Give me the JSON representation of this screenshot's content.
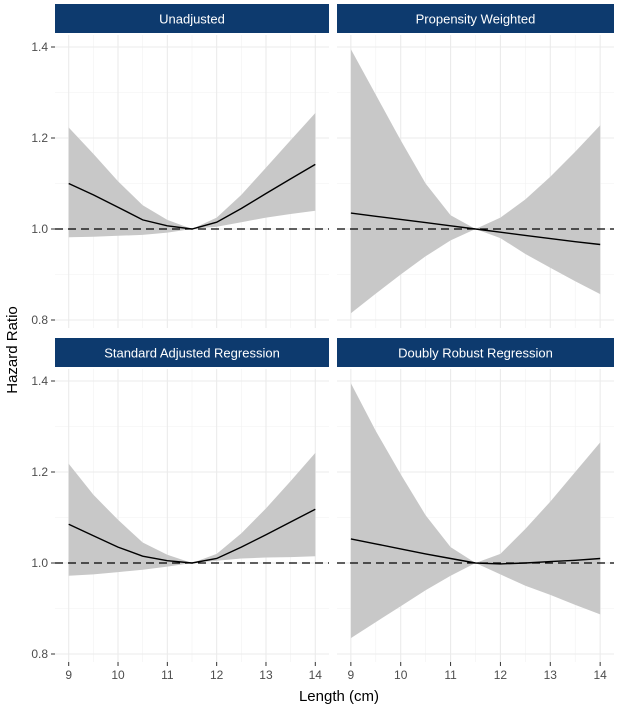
{
  "chart_data": {
    "type": "line",
    "ylabel": "Hazard Ratio",
    "xlabel": "Length (cm)",
    "xlim": [
      9,
      14
    ],
    "ylim": [
      0.8,
      1.4
    ],
    "x_ticks": [
      9,
      10,
      11,
      12,
      13,
      14
    ],
    "y_ticks": [
      0.8,
      1.0,
      1.2,
      1.4
    ],
    "y_tick_labels": [
      "0.8",
      "1.0",
      "1.2",
      "1.4"
    ],
    "reference_line": 1.0,
    "grid": true,
    "strip_color": "#0d3a6e",
    "ribbon_color": "#c8c8c8",
    "line_color": "#000000",
    "panels": [
      {
        "title": "Unadjusted",
        "x": [
          9,
          9.5,
          10,
          10.5,
          11,
          11.5,
          12,
          12.5,
          13,
          13.5,
          14
        ],
        "estimate": [
          1.1,
          1.075,
          1.048,
          1.02,
          1.007,
          1.0,
          1.015,
          1.045,
          1.078,
          1.11,
          1.142
        ],
        "lower": [
          0.982,
          0.983,
          0.985,
          0.987,
          0.992,
          1.0,
          1.005,
          1.015,
          1.025,
          1.033,
          1.04
        ],
        "upper": [
          1.223,
          1.165,
          1.105,
          1.052,
          1.02,
          1.0,
          1.025,
          1.075,
          1.135,
          1.195,
          1.255
        ]
      },
      {
        "title": "Propensity Weighted",
        "x": [
          9,
          9.5,
          10,
          10.5,
          11,
          11.5,
          12,
          12.5,
          13,
          13.5,
          14
        ],
        "estimate": [
          1.035,
          1.028,
          1.021,
          1.014,
          1.007,
          1.0,
          0.993,
          0.986,
          0.979,
          0.972,
          0.966
        ],
        "lower": [
          0.815,
          0.858,
          0.9,
          0.94,
          0.975,
          1.0,
          0.98,
          0.945,
          0.915,
          0.885,
          0.857
        ],
        "upper": [
          1.395,
          1.295,
          1.195,
          1.1,
          1.03,
          1.0,
          1.025,
          1.065,
          1.115,
          1.17,
          1.228
        ]
      },
      {
        "title": "Standard Adjusted Regression",
        "x": [
          9,
          9.5,
          10,
          10.5,
          11,
          11.5,
          12,
          12.5,
          13,
          13.5,
          14
        ],
        "estimate": [
          1.085,
          1.06,
          1.035,
          1.015,
          1.005,
          1.0,
          1.01,
          1.035,
          1.062,
          1.09,
          1.118
        ],
        "lower": [
          0.972,
          0.975,
          0.98,
          0.985,
          0.992,
          1.0,
          1.005,
          1.01,
          1.012,
          1.013,
          1.015
        ],
        "upper": [
          1.218,
          1.15,
          1.095,
          1.045,
          1.018,
          1.0,
          1.02,
          1.065,
          1.12,
          1.18,
          1.242
        ]
      },
      {
        "title": "Doubly Robust Regression",
        "x": [
          9,
          9.5,
          10,
          10.5,
          11,
          11.5,
          12,
          12.5,
          13,
          13.5,
          14
        ],
        "estimate": [
          1.053,
          1.042,
          1.031,
          1.02,
          1.01,
          1.0,
          0.998,
          1.0,
          1.003,
          1.006,
          1.01
        ],
        "lower": [
          0.835,
          0.87,
          0.905,
          0.94,
          0.972,
          1.0,
          0.975,
          0.95,
          0.93,
          0.908,
          0.887
        ],
        "upper": [
          1.395,
          1.29,
          1.195,
          1.105,
          1.035,
          1.0,
          1.02,
          1.075,
          1.135,
          1.2,
          1.265
        ]
      }
    ]
  }
}
